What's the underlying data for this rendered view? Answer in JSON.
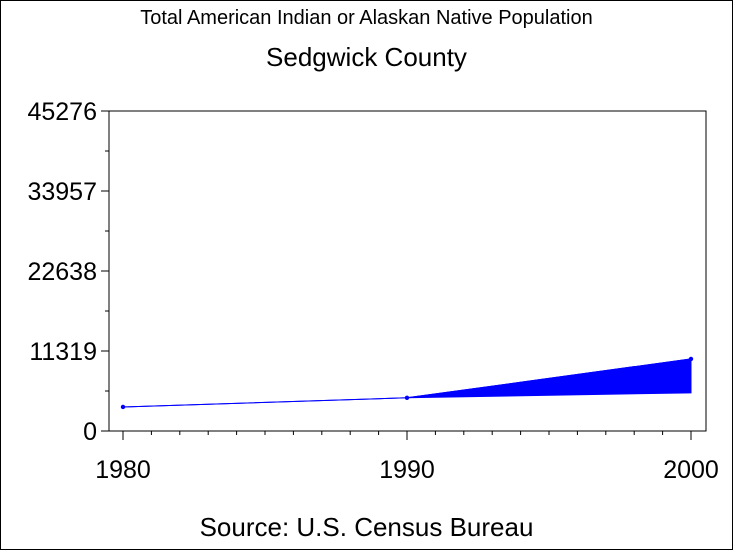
{
  "chart_data": {
    "type": "area",
    "title": "Total American Indian or Alaskan Native Population",
    "subtitle": "Sedgwick County",
    "source": "Source: U.S. Census Bureau",
    "x": [
      1980,
      1990,
      2000
    ],
    "x_ticks": [
      "1980",
      "1990",
      "2000"
    ],
    "y_ticks": [
      "0",
      "11319",
      "22638",
      "33957",
      "45276"
    ],
    "ylim": [
      0,
      45276
    ],
    "xlim": [
      1980,
      2000
    ],
    "series": [
      {
        "values": [
          3400,
          4700,
          10200
        ]
      }
    ],
    "band_lower": [
      3400,
      4700,
      5400
    ],
    "color": "#0000ff",
    "grid": false
  }
}
